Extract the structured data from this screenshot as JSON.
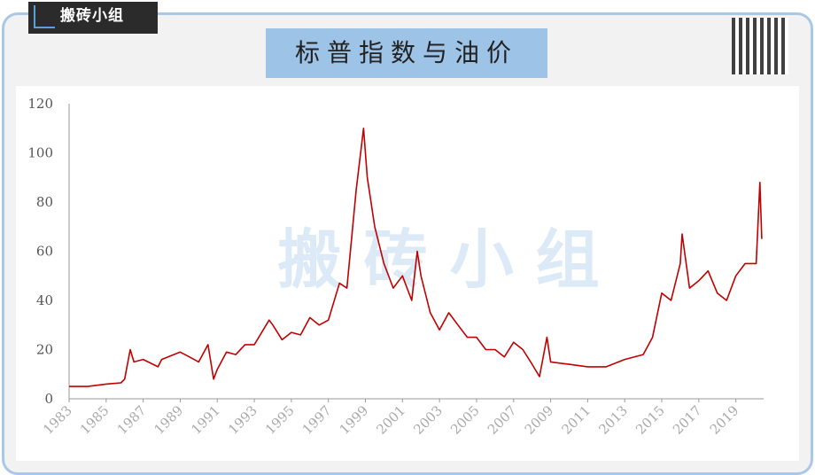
{
  "logo": "搬砖小组",
  "watermark": "搬 砖 小 组",
  "chart_data": {
    "type": "line",
    "title": "标普指数与油价",
    "color": "#c00000",
    "x": [
      1983,
      1984,
      1985,
      1985.8,
      1986.0,
      1986.3,
      1986.5,
      1987,
      1987.8,
      1988,
      1989,
      1989.5,
      1990,
      1990.5,
      1990.8,
      1991,
      1991.5,
      1992,
      1992.5,
      1993,
      1993.8,
      1994,
      1994.5,
      1995,
      1995.5,
      1996,
      1996.5,
      1997,
      1997.6,
      1998,
      1998.5,
      1998.9,
      1999.1,
      1999.5,
      2000,
      2000.5,
      2001,
      2001.5,
      2001.8,
      2002,
      2002.5,
      2003,
      2003.5,
      2004,
      2004.5,
      2005,
      2005.5,
      2006,
      2006.5,
      2007,
      2007.5,
      2008,
      2008.4,
      2008.8,
      2009,
      2010,
      2011,
      2012,
      2013,
      2014,
      2014.5,
      2015,
      2015.5,
      2016,
      2016.1,
      2016.5,
      2017,
      2017.5,
      2018,
      2018.5,
      2019,
      2019.5,
      2020.1,
      2020.3,
      2020.4
    ],
    "values": [
      5,
      5,
      6,
      6.5,
      8,
      20,
      15,
      16,
      13,
      16,
      19,
      17,
      15,
      22,
      8,
      12,
      19,
      18,
      22,
      22,
      32,
      30,
      24,
      27,
      26,
      33,
      30,
      32,
      47,
      45,
      85,
      110,
      90,
      70,
      55,
      45,
      50,
      40,
      60,
      50,
      35,
      28,
      35,
      30,
      25,
      25,
      20,
      20,
      17,
      23,
      20,
      14,
      9,
      25,
      15,
      14,
      13,
      13,
      16,
      18,
      25,
      43,
      40,
      55,
      67,
      45,
      48,
      52,
      43,
      40,
      50,
      55,
      55,
      88,
      65
    ],
    "xlim": [
      1983,
      2020.5
    ],
    "xticks": [
      1983,
      1985,
      1987,
      1989,
      1991,
      1993,
      1995,
      1997,
      1999,
      2001,
      2003,
      2005,
      2007,
      2009,
      2011,
      2013,
      2015,
      2017,
      2019
    ],
    "ylim": [
      0,
      120
    ],
    "yticks": [
      0,
      20,
      40,
      60,
      80,
      100,
      120
    ]
  }
}
